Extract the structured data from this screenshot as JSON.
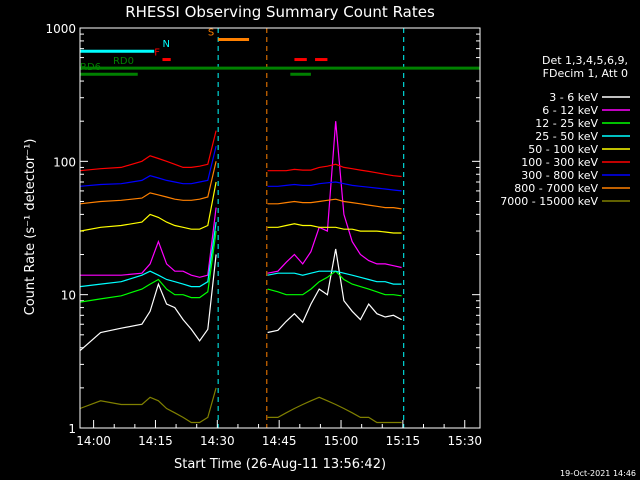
{
  "chart_data": {
    "type": "line",
    "title": "RHESSI Observing Summary Count Rates",
    "xlabel": "Start Time (26-Aug-11 13:56:42)",
    "ylabel": "Count Rate (s⁻¹ detector⁻¹)",
    "y_scale": "log",
    "ylim": [
      1,
      1000
    ],
    "xlim_minutes": [
      0,
      97
    ],
    "x_ticks": [
      {
        "label": "14:00",
        "minute": 3.3
      },
      {
        "label": "14:15",
        "minute": 18.3
      },
      {
        "label": "14:30",
        "minute": 33.3
      },
      {
        "label": "14:45",
        "minute": 48.3
      },
      {
        "label": "15:00",
        "minute": 63.3
      },
      {
        "label": "15:15",
        "minute": 78.3
      },
      {
        "label": "15:30",
        "minute": 93.3
      }
    ],
    "y_ticks": [
      {
        "label": "1",
        "value": 1
      },
      {
        "label": "10",
        "value": 10
      },
      {
        "label": "100",
        "value": 100
      },
      {
        "label": "1000",
        "value": 1000
      }
    ],
    "data_gaps_minutes": [
      [
        33.5,
        45.3
      ],
      [
        78.5,
        97
      ]
    ],
    "info_lines": [
      "Det 1,3,4,5,6,9,",
      "FDecim 1, Att 0"
    ],
    "series": [
      {
        "name": "3 - 6 keV",
        "color": "#ffffff",
        "values": [
          [
            0,
            3.8
          ],
          [
            5,
            5.2
          ],
          [
            10,
            5.6
          ],
          [
            15,
            6.0
          ],
          [
            17,
            7.5
          ],
          [
            19,
            12
          ],
          [
            21,
            8.5
          ],
          [
            23,
            8.0
          ],
          [
            25,
            6.5
          ],
          [
            27,
            5.5
          ],
          [
            29,
            4.5
          ],
          [
            31,
            5.5
          ],
          [
            33,
            20
          ],
          [
            45.5,
            5.2
          ],
          [
            48,
            5.4
          ],
          [
            50,
            6.3
          ],
          [
            52,
            7.2
          ],
          [
            54,
            6.2
          ],
          [
            56,
            8.5
          ],
          [
            58,
            11
          ],
          [
            60,
            10
          ],
          [
            62,
            22
          ],
          [
            64,
            9.0
          ],
          [
            66,
            7.5
          ],
          [
            68,
            6.5
          ],
          [
            70,
            8.5
          ],
          [
            72,
            7.2
          ],
          [
            74,
            6.8
          ],
          [
            76,
            7.0
          ],
          [
            78,
            6.5
          ]
        ]
      },
      {
        "name": "6 - 12 keV",
        "color": "#ff00ff",
        "values": [
          [
            0,
            14
          ],
          [
            5,
            14
          ],
          [
            10,
            14
          ],
          [
            15,
            14.5
          ],
          [
            17,
            17
          ],
          [
            19,
            25
          ],
          [
            21,
            17
          ],
          [
            23,
            15
          ],
          [
            25,
            15
          ],
          [
            27,
            14
          ],
          [
            29,
            13.5
          ],
          [
            31,
            14
          ],
          [
            33,
            45
          ],
          [
            45.5,
            14.5
          ],
          [
            48,
            15
          ],
          [
            50,
            17.5
          ],
          [
            52,
            20
          ],
          [
            54,
            17
          ],
          [
            56,
            21
          ],
          [
            58,
            32
          ],
          [
            60,
            30
          ],
          [
            62,
            200
          ],
          [
            64,
            40
          ],
          [
            66,
            25
          ],
          [
            68,
            20
          ],
          [
            70,
            18
          ],
          [
            72,
            17
          ],
          [
            74,
            17
          ],
          [
            76,
            16.5
          ],
          [
            78,
            16
          ]
        ]
      },
      {
        "name": "12 - 25 keV",
        "color": "#00ff00",
        "values": [
          [
            0,
            8.8
          ],
          [
            5,
            9.3
          ],
          [
            10,
            9.8
          ],
          [
            15,
            11
          ],
          [
            17,
            12
          ],
          [
            19,
            13
          ],
          [
            21,
            11
          ],
          [
            23,
            10
          ],
          [
            25,
            10
          ],
          [
            27,
            9.5
          ],
          [
            29,
            9.5
          ],
          [
            31,
            10.5
          ],
          [
            33,
            30
          ],
          [
            45.5,
            11
          ],
          [
            48,
            10.5
          ],
          [
            50,
            10
          ],
          [
            52,
            10
          ],
          [
            54,
            10
          ],
          [
            56,
            11
          ],
          [
            58,
            12.5
          ],
          [
            60,
            13.5
          ],
          [
            62,
            15
          ],
          [
            64,
            13
          ],
          [
            66,
            12
          ],
          [
            68,
            11.5
          ],
          [
            70,
            11
          ],
          [
            72,
            10.5
          ],
          [
            74,
            10
          ],
          [
            76,
            10
          ],
          [
            78,
            9.8
          ]
        ]
      },
      {
        "name": "25 - 50 keV",
        "color": "#00ffff",
        "values": [
          [
            0,
            11.5
          ],
          [
            5,
            12
          ],
          [
            10,
            12.5
          ],
          [
            15,
            14
          ],
          [
            17,
            15
          ],
          [
            19,
            14
          ],
          [
            21,
            13
          ],
          [
            23,
            12.5
          ],
          [
            25,
            12
          ],
          [
            27,
            11.5
          ],
          [
            29,
            11.5
          ],
          [
            31,
            12.5
          ],
          [
            33,
            35
          ],
          [
            45.5,
            14
          ],
          [
            48,
            14.5
          ],
          [
            50,
            14.5
          ],
          [
            52,
            14.5
          ],
          [
            54,
            14
          ],
          [
            56,
            14.5
          ],
          [
            58,
            15
          ],
          [
            60,
            15
          ],
          [
            62,
            15
          ],
          [
            64,
            14.5
          ],
          [
            66,
            14
          ],
          [
            68,
            13.5
          ],
          [
            70,
            13
          ],
          [
            72,
            12.5
          ],
          [
            74,
            12.5
          ],
          [
            76,
            12
          ],
          [
            78,
            12
          ]
        ]
      },
      {
        "name": "50 - 100 keV",
        "color": "#ffff00",
        "values": [
          [
            0,
            30
          ],
          [
            5,
            32
          ],
          [
            10,
            33
          ],
          [
            15,
            35
          ],
          [
            17,
            40
          ],
          [
            19,
            38
          ],
          [
            21,
            35
          ],
          [
            23,
            33
          ],
          [
            25,
            32
          ],
          [
            27,
            31
          ],
          [
            29,
            31
          ],
          [
            31,
            33
          ],
          [
            33,
            70
          ],
          [
            45.5,
            32
          ],
          [
            48,
            32
          ],
          [
            50,
            33
          ],
          [
            52,
            34
          ],
          [
            54,
            33
          ],
          [
            56,
            33
          ],
          [
            58,
            32
          ],
          [
            60,
            32
          ],
          [
            62,
            32
          ],
          [
            64,
            31
          ],
          [
            66,
            31
          ],
          [
            68,
            30
          ],
          [
            70,
            30
          ],
          [
            72,
            30
          ],
          [
            74,
            29.5
          ],
          [
            76,
            29
          ],
          [
            78,
            29
          ]
        ]
      },
      {
        "name": "100 - 300 keV",
        "color": "#ff0000",
        "values": [
          [
            0,
            85
          ],
          [
            5,
            88
          ],
          [
            10,
            90
          ],
          [
            15,
            100
          ],
          [
            17,
            110
          ],
          [
            19,
            105
          ],
          [
            21,
            100
          ],
          [
            23,
            95
          ],
          [
            25,
            90
          ],
          [
            27,
            90
          ],
          [
            29,
            92
          ],
          [
            31,
            95
          ],
          [
            33,
            170
          ],
          [
            45.5,
            85
          ],
          [
            48,
            85
          ],
          [
            50,
            85
          ],
          [
            52,
            87
          ],
          [
            54,
            86
          ],
          [
            56,
            86
          ],
          [
            58,
            90
          ],
          [
            60,
            92
          ],
          [
            62,
            95
          ],
          [
            64,
            90
          ],
          [
            66,
            88
          ],
          [
            68,
            86
          ],
          [
            70,
            84
          ],
          [
            72,
            82
          ],
          [
            74,
            80
          ],
          [
            76,
            78
          ],
          [
            78,
            77
          ]
        ]
      },
      {
        "name": "300 - 800 keV",
        "color": "#0000ff",
        "values": [
          [
            0,
            65
          ],
          [
            5,
            67
          ],
          [
            10,
            68
          ],
          [
            15,
            72
          ],
          [
            17,
            78
          ],
          [
            19,
            75
          ],
          [
            21,
            72
          ],
          [
            23,
            70
          ],
          [
            25,
            68
          ],
          [
            27,
            68
          ],
          [
            29,
            70
          ],
          [
            31,
            72
          ],
          [
            33,
            130
          ],
          [
            45.5,
            65
          ],
          [
            48,
            65
          ],
          [
            50,
            66
          ],
          [
            52,
            67
          ],
          [
            54,
            66
          ],
          [
            56,
            66
          ],
          [
            58,
            68
          ],
          [
            60,
            69
          ],
          [
            62,
            70
          ],
          [
            64,
            68
          ],
          [
            66,
            66
          ],
          [
            68,
            65
          ],
          [
            70,
            64
          ],
          [
            72,
            63
          ],
          [
            74,
            62
          ],
          [
            76,
            61
          ],
          [
            78,
            60
          ]
        ]
      },
      {
        "name": "800 - 7000 keV",
        "color": "#ff8000",
        "values": [
          [
            0,
            48
          ],
          [
            5,
            50
          ],
          [
            10,
            51
          ],
          [
            15,
            53
          ],
          [
            17,
            58
          ],
          [
            19,
            56
          ],
          [
            21,
            54
          ],
          [
            23,
            52
          ],
          [
            25,
            51
          ],
          [
            27,
            51
          ],
          [
            29,
            52
          ],
          [
            31,
            54
          ],
          [
            33,
            100
          ],
          [
            45.5,
            48
          ],
          [
            48,
            48
          ],
          [
            50,
            49
          ],
          [
            52,
            50
          ],
          [
            54,
            49
          ],
          [
            56,
            49
          ],
          [
            58,
            50
          ],
          [
            60,
            51
          ],
          [
            62,
            52
          ],
          [
            64,
            50
          ],
          [
            66,
            49
          ],
          [
            68,
            48
          ],
          [
            70,
            47
          ],
          [
            72,
            46
          ],
          [
            74,
            45
          ],
          [
            76,
            45
          ],
          [
            78,
            44
          ]
        ]
      },
      {
        "name": "7000 - 15000 keV",
        "color": "#808000",
        "values": [
          [
            0,
            1.4
          ],
          [
            5,
            1.6
          ],
          [
            10,
            1.5
          ],
          [
            15,
            1.5
          ],
          [
            17,
            1.7
          ],
          [
            19,
            1.6
          ],
          [
            21,
            1.4
          ],
          [
            23,
            1.3
          ],
          [
            25,
            1.2
          ],
          [
            27,
            1.1
          ],
          [
            29,
            1.1
          ],
          [
            31,
            1.2
          ],
          [
            33,
            2.0
          ],
          [
            45.5,
            1.2
          ],
          [
            48,
            1.2
          ],
          [
            50,
            1.3
          ],
          [
            52,
            1.4
          ],
          [
            54,
            1.5
          ],
          [
            56,
            1.6
          ],
          [
            58,
            1.7
          ],
          [
            60,
            1.6
          ],
          [
            62,
            1.5
          ],
          [
            64,
            1.4
          ],
          [
            66,
            1.3
          ],
          [
            68,
            1.2
          ],
          [
            70,
            1.2
          ],
          [
            72,
            1.1
          ],
          [
            74,
            1.1
          ],
          [
            76,
            1.1
          ],
          [
            78,
            1.1
          ]
        ]
      }
    ],
    "flags": [
      {
        "label": "N",
        "color": "#00ffff",
        "y_value": 670,
        "segments": [
          [
            0,
            18
          ]
        ],
        "label_at": 20
      },
      {
        "label": "S",
        "color": "#ff8000",
        "y_value": 820,
        "segments": [
          [
            33.5,
            41
          ]
        ],
        "label_at": 31
      },
      {
        "label": "F",
        "color": "#ff0000",
        "y_value": 580,
        "segments": [
          [
            20,
            22
          ],
          [
            52,
            55
          ],
          [
            57,
            60
          ]
        ],
        "label_at": 18
      },
      {
        "label": "RD0",
        "color": "#008000",
        "y_value": 500,
        "segments": [
          [
            0,
            97
          ]
        ],
        "label_at": 8
      },
      {
        "label": "RD6",
        "color": "#008000",
        "y_value": 450,
        "segments": [
          [
            0,
            14
          ],
          [
            51,
            56
          ]
        ],
        "label_at": 0
      }
    ]
  },
  "footer": {
    "timestamp": "19-Oct-2021 14:46"
  }
}
